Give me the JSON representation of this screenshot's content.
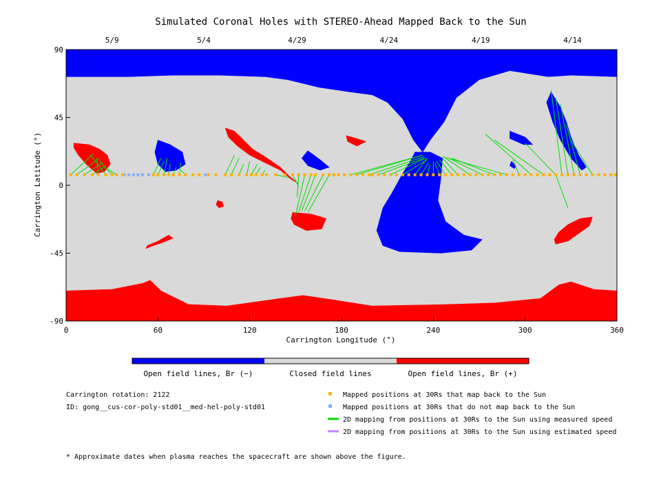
{
  "chart_data": {
    "type": "map",
    "title": "Simulated Coronal Holes with STEREO-Ahead Mapped Back to the Sun",
    "xlabel": "Carrington Longitude (°)",
    "ylabel": "Carrington Latitude (°)",
    "xlim": [
      0,
      360
    ],
    "ylim": [
      -90,
      90
    ],
    "x_ticks": [
      0,
      60,
      120,
      180,
      240,
      300,
      360
    ],
    "y_ticks": [
      90,
      45,
      0,
      -45,
      -90
    ],
    "top_date_ticks": [
      {
        "label": "5/9",
        "lon": 30
      },
      {
        "label": "5/4",
        "lon": 90
      },
      {
        "label": "4/29",
        "lon": 151
      },
      {
        "label": "4/24",
        "lon": 211
      },
      {
        "label": "4/19",
        "lon": 271
      },
      {
        "label": "4/14",
        "lon": 331
      }
    ],
    "colors": {
      "negative": "#0000ff",
      "closed": "#d9d9d9",
      "positive": "#ff0000",
      "mapped": "#ffb000",
      "unmapped": "#80b0ff",
      "measured": "#00dd00",
      "estimated": "#c080ff"
    },
    "colorbar_labels": [
      "Open field lines, Br (−)",
      "Closed field lines",
      "Open field lines, Br (+)"
    ],
    "regions": {
      "negative": [
        {
          "name": "north-polar-hole",
          "polygon": [
            [
              0,
              90
            ],
            [
              360,
              90
            ],
            [
              360,
              72
            ],
            [
              330,
              73
            ],
            [
              315,
              72
            ],
            [
              290,
              76
            ],
            [
              270,
              70
            ],
            [
              255,
              58
            ],
            [
              247,
              42
            ],
            [
              238,
              30
            ],
            [
              233,
              22
            ],
            [
              227,
              30
            ],
            [
              220,
              44
            ],
            [
              210,
              55
            ],
            [
              200,
              60
            ],
            [
              185,
              62
            ],
            [
              165,
              65
            ],
            [
              145,
              70
            ],
            [
              130,
              72
            ],
            [
              100,
              73
            ],
            [
              70,
              73
            ],
            [
              40,
              72
            ],
            [
              0,
              72
            ]
          ]
        },
        {
          "name": "equatorial-extension",
          "polygon": [
            [
              228,
              22
            ],
            [
              238,
              22
            ],
            [
              246,
              18
            ],
            [
              245,
              5
            ],
            [
              243,
              -10
            ],
            [
              248,
              -24
            ],
            [
              260,
              -33
            ],
            [
              272,
              -36
            ],
            [
              265,
              -43
            ],
            [
              245,
              -45
            ],
            [
              218,
              -44
            ],
            [
              207,
              -40
            ],
            [
              203,
              -30
            ],
            [
              207,
              -15
            ],
            [
              213,
              -5
            ],
            [
              220,
              8
            ],
            [
              225,
              16
            ]
          ]
        },
        {
          "name": "high-latitude-extension",
          "polygon": [
            [
              317,
              62
            ],
            [
              323,
              52
            ],
            [
              327,
              42
            ],
            [
              330,
              32
            ],
            [
              335,
              20
            ],
            [
              340,
              12
            ],
            [
              337,
              10
            ],
            [
              330,
              18
            ],
            [
              323,
              30
            ],
            [
              318,
              42
            ],
            [
              314,
              55
            ]
          ]
        },
        {
          "name": "mid-latitude-patch",
          "polygon": [
            [
              60,
              30
            ],
            [
              68,
              27
            ],
            [
              76,
              22
            ],
            [
              78,
              14
            ],
            [
              72,
              10
            ],
            [
              65,
              9
            ],
            [
              60,
              14
            ],
            [
              58,
              22
            ]
          ]
        },
        {
          "name": "hole-near-158",
          "polygon": [
            [
              158,
              23
            ],
            [
              166,
              17
            ],
            [
              172,
              12
            ],
            [
              166,
              10
            ],
            [
              158,
              13
            ],
            [
              154,
              18
            ]
          ]
        },
        {
          "name": "hole-near-290",
          "polygon": [
            [
              290,
              36
            ],
            [
              300,
              32
            ],
            [
              305,
              27
            ],
            [
              299,
              27
            ],
            [
              290,
              31
            ]
          ]
        },
        {
          "name": "hole-near-292",
          "polygon": [
            [
              291,
              16
            ],
            [
              294,
              13
            ],
            [
              293,
              11
            ],
            [
              290,
              13
            ]
          ]
        }
      ],
      "positive": [
        {
          "name": "south-polar-hole",
          "polygon": [
            [
              0,
              -90
            ],
            [
              360,
              -90
            ],
            [
              360,
              -70
            ],
            [
              345,
              -69
            ],
            [
              330,
              -64
            ],
            [
              322,
              -66
            ],
            [
              310,
              -75
            ],
            [
              280,
              -78
            ],
            [
              250,
              -79
            ],
            [
              200,
              -80
            ],
            [
              175,
              -76
            ],
            [
              155,
              -73
            ],
            [
              140,
              -75
            ],
            [
              105,
              -80
            ],
            [
              80,
              -79
            ],
            [
              62,
              -70
            ],
            [
              55,
              -63
            ],
            [
              50,
              -65
            ],
            [
              30,
              -69
            ],
            [
              0,
              -70
            ]
          ]
        },
        {
          "name": "hole-near-15",
          "polygon": [
            [
              5,
              28
            ],
            [
              15,
              27
            ],
            [
              22,
              24
            ],
            [
              27,
              20
            ],
            [
              29,
              14
            ],
            [
              25,
              9
            ],
            [
              20,
              8
            ],
            [
              14,
              13
            ],
            [
              8,
              20
            ],
            [
              5,
              25
            ]
          ]
        },
        {
          "name": "hole-near-110",
          "polygon": [
            [
              104,
              38
            ],
            [
              110,
              36
            ],
            [
              116,
              30
            ],
            [
              122,
              24
            ],
            [
              130,
              19
            ],
            [
              140,
              12
            ],
            [
              146,
              6
            ],
            [
              152,
              1
            ],
            [
              147,
              4
            ],
            [
              140,
              10
            ],
            [
              130,
              15
            ],
            [
              120,
              20
            ],
            [
              112,
              26
            ],
            [
              106,
              32
            ]
          ]
        },
        {
          "name": "hole-near-185",
          "polygon": [
            [
              183,
              33
            ],
            [
              190,
              31
            ],
            [
              196,
              29
            ],
            [
              190,
              26
            ],
            [
              184,
              29
            ]
          ]
        },
        {
          "name": "hole-near-152",
          "polygon": [
            [
              148,
              -18
            ],
            [
              160,
              -19
            ],
            [
              170,
              -22
            ],
            [
              167,
              -29
            ],
            [
              157,
              -30
            ],
            [
              149,
              -26
            ],
            [
              147,
              -22
            ]
          ]
        },
        {
          "name": "hole-near-340",
          "polygon": [
            [
              320,
              -39
            ],
            [
              328,
              -37
            ],
            [
              335,
              -32
            ],
            [
              342,
              -27
            ],
            [
              344,
              -21
            ],
            [
              336,
              -22
            ],
            [
              328,
              -26
            ],
            [
              322,
              -31
            ],
            [
              319,
              -36
            ]
          ]
        },
        {
          "name": "hole-near-60",
          "polygon": [
            [
              52,
              -42
            ],
            [
              57,
              -40
            ],
            [
              63,
              -38
            ],
            [
              70,
              -35
            ],
            [
              67,
              -33
            ],
            [
              60,
              -37
            ],
            [
              53,
              -40
            ]
          ]
        },
        {
          "name": "hole-near-100",
          "polygon": [
            [
              99,
              -10
            ],
            [
              102,
              -11
            ],
            [
              103,
              -14
            ],
            [
              100,
              -15
            ],
            [
              98,
              -13
            ]
          ]
        }
      ]
    },
    "mapped_points_lon": [
      3,
      7,
      12,
      17,
      21,
      26,
      30,
      33,
      37,
      57,
      60,
      64,
      67,
      70,
      74,
      78,
      83,
      87,
      93,
      98,
      104,
      108,
      113,
      118,
      121,
      124,
      128,
      131,
      137,
      143,
      148,
      152,
      156,
      160,
      163,
      168,
      172,
      175,
      178,
      182,
      186,
      190,
      194,
      198,
      200,
      204,
      208,
      212,
      216,
      220,
      224,
      228,
      232,
      236,
      240,
      244,
      248,
      252,
      256,
      260,
      264,
      268,
      272,
      276,
      280,
      284,
      288,
      292,
      296,
      300,
      304,
      308,
      312,
      316,
      320,
      324,
      328,
      332,
      336,
      340,
      344,
      348,
      352,
      356,
      359
    ],
    "unmapped_points_lon": [
      38,
      41,
      44,
      47,
      50,
      54,
      91
    ],
    "mapped_points_lat": 7,
    "field_lines": [
      [
        3,
        7,
        18,
        21
      ],
      [
        7,
        7,
        22,
        18
      ],
      [
        12,
        7,
        24,
        15
      ],
      [
        17,
        7,
        26,
        13
      ],
      [
        21,
        7,
        20,
        18
      ],
      [
        26,
        7,
        16,
        20
      ],
      [
        30,
        7,
        22,
        16
      ],
      [
        33,
        7,
        25,
        12
      ],
      [
        57,
        7,
        62,
        18
      ],
      [
        60,
        7,
        64,
        16
      ],
      [
        64,
        7,
        66,
        18
      ],
      [
        67,
        7,
        68,
        14
      ],
      [
        70,
        7,
        72,
        12
      ],
      [
        74,
        7,
        75,
        15
      ],
      [
        78,
        7,
        74,
        11
      ],
      [
        104,
        7,
        110,
        20
      ],
      [
        108,
        7,
        113,
        18
      ],
      [
        113,
        7,
        116,
        14
      ],
      [
        118,
        7,
        120,
        16
      ],
      [
        121,
        7,
        125,
        14
      ],
      [
        124,
        7,
        127,
        12
      ],
      [
        128,
        7,
        130,
        10
      ],
      [
        137,
        7,
        146,
        5
      ],
      [
        148,
        7,
        152,
        -1
      ],
      [
        152,
        7,
        151,
        -8
      ],
      [
        156,
        7,
        150,
        -20
      ],
      [
        160,
        7,
        152,
        -18
      ],
      [
        163,
        7,
        154,
        -17
      ],
      [
        168,
        7,
        156,
        -17
      ],
      [
        172,
        7,
        158,
        -18
      ],
      [
        186,
        7,
        233,
        20
      ],
      [
        190,
        7,
        233,
        20
      ],
      [
        198,
        7,
        234,
        19
      ],
      [
        204,
        7,
        234,
        18
      ],
      [
        212,
        7,
        235,
        18
      ],
      [
        220,
        7,
        236,
        17
      ],
      [
        228,
        7,
        236,
        18
      ],
      [
        232,
        7,
        237,
        15
      ],
      [
        236,
        7,
        238,
        14
      ],
      [
        240,
        7,
        240,
        16
      ],
      [
        244,
        7,
        241,
        15
      ],
      [
        248,
        7,
        242,
        16
      ],
      [
        252,
        7,
        244,
        17
      ],
      [
        256,
        7,
        246,
        18
      ],
      [
        264,
        7,
        248,
        18
      ],
      [
        272,
        7,
        250,
        18
      ],
      [
        280,
        7,
        252,
        18
      ],
      [
        288,
        7,
        246,
        19
      ],
      [
        304,
        7,
        274,
        34
      ],
      [
        312,
        7,
        280,
        30
      ],
      [
        320,
        7,
        300,
        28
      ],
      [
        324,
        7,
        317,
        63
      ],
      [
        328,
        7,
        320,
        58
      ],
      [
        332,
        7,
        323,
        54
      ],
      [
        336,
        7,
        327,
        40
      ],
      [
        344,
        7,
        330,
        30
      ],
      [
        320,
        7,
        328,
        -15
      ],
      [
        296,
        7,
        292,
        17
      ]
    ],
    "legend": [
      {
        "symbol": "mapped",
        "label": "Mapped positions at 30Rs that map back to the Sun"
      },
      {
        "symbol": "unmapped",
        "label": "Mapped positions at 30Rs that do not map back to the Sun"
      },
      {
        "symbol": "measured",
        "label": "2D mapping from positions at 30Rs to the Sun using measured speed"
      },
      {
        "symbol": "estimated",
        "label": "2D mapping from positions at 30Rs to the Sun using estimated speed"
      }
    ],
    "info": {
      "rotation": "Carrington rotation: 2122",
      "id": "ID: gong__cus-cor-poly-std01__med-hel-poly-std01"
    },
    "footnote": "* Approximate dates when plasma reaches the spacecraft are shown above the figure."
  }
}
